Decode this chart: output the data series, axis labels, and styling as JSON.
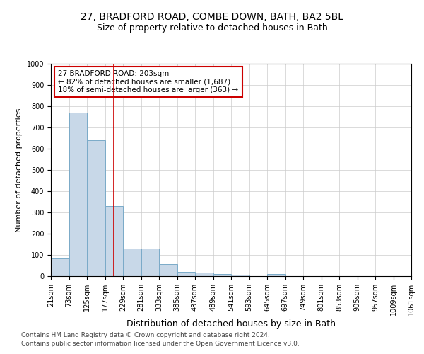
{
  "title1": "27, BRADFORD ROAD, COMBE DOWN, BATH, BA2 5BL",
  "title2": "Size of property relative to detached houses in Bath",
  "xlabel": "Distribution of detached houses by size in Bath",
  "ylabel": "Number of detached properties",
  "bin_edges": [
    21,
    73,
    125,
    177,
    229,
    281,
    333,
    385,
    437,
    489,
    541,
    593,
    645,
    697,
    749,
    801,
    853,
    905,
    957,
    1009,
    1061
  ],
  "bar_heights": [
    82,
    770,
    640,
    330,
    130,
    130,
    57,
    20,
    18,
    10,
    8,
    0,
    10,
    0,
    0,
    0,
    0,
    0,
    0,
    0
  ],
  "bar_color": "#c8d8e8",
  "bar_edgecolor": "#7aaac8",
  "grid_color": "#cccccc",
  "red_line_x": 203,
  "red_line_color": "#cc0000",
  "ylim": [
    0,
    1000
  ],
  "annotation_line1": "27 BRADFORD ROAD: 203sqm",
  "annotation_line2": "← 82% of detached houses are smaller (1,687)",
  "annotation_line3": "18% of semi-detached houses are larger (363) →",
  "footnote1": "Contains HM Land Registry data © Crown copyright and database right 2024.",
  "footnote2": "Contains public sector information licensed under the Open Government Licence v3.0.",
  "title1_fontsize": 10,
  "title2_fontsize": 9,
  "xlabel_fontsize": 9,
  "ylabel_fontsize": 8,
  "tick_fontsize": 7,
  "annotation_fontsize": 7.5,
  "footnote_fontsize": 6.5
}
